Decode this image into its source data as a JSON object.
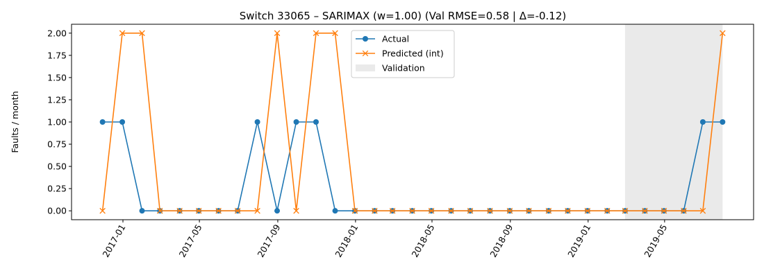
{
  "chart_data": {
    "type": "line",
    "title": "Switch 33065 – SARIMAX (w=1.00) (Val RMSE=0.58 | Δ=-0.12)",
    "xlabel": "",
    "ylabel": "Faults / month",
    "ylim": [
      -0.1,
      2.1
    ],
    "yticks": [
      "0.00",
      "0.25",
      "0.50",
      "0.75",
      "1.00",
      "1.25",
      "1.50",
      "1.75",
      "2.00"
    ],
    "xticks": [
      "2017-01",
      "2017-05",
      "2017-09",
      "2018-01",
      "2018-05",
      "2018-09",
      "2019-01",
      "2019-05"
    ],
    "x": [
      "2016-11-30",
      "2016-12-31",
      "2017-01-31",
      "2017-02-28",
      "2017-03-31",
      "2017-04-30",
      "2017-05-31",
      "2017-06-30",
      "2017-07-31",
      "2017-08-31",
      "2017-09-30",
      "2017-10-31",
      "2017-11-30",
      "2017-12-31",
      "2018-01-31",
      "2018-02-28",
      "2018-03-31",
      "2018-04-30",
      "2018-05-31",
      "2018-06-30",
      "2018-07-31",
      "2018-08-31",
      "2018-09-30",
      "2018-10-31",
      "2018-11-30",
      "2018-12-31",
      "2019-01-31",
      "2019-02-28",
      "2019-03-31",
      "2019-04-30",
      "2019-05-31",
      "2019-06-30",
      "2019-07-31"
    ],
    "series": [
      {
        "name": "Actual",
        "color": "#1f77b4",
        "marker": "circle",
        "values": [
          1,
          1,
          0,
          0,
          0,
          0,
          0,
          0,
          1,
          0,
          1,
          1,
          0,
          0,
          0,
          0,
          0,
          0,
          0,
          0,
          0,
          0,
          0,
          0,
          0,
          0,
          0,
          0,
          0,
          0,
          0,
          1,
          1
        ]
      },
      {
        "name": "Predicted (int)",
        "color": "#ff7f0e",
        "marker": "x",
        "values": [
          0,
          2,
          2,
          0,
          0,
          0,
          0,
          0,
          0,
          2,
          0,
          2,
          2,
          0,
          0,
          0,
          0,
          0,
          0,
          0,
          0,
          0,
          0,
          0,
          0,
          0,
          0,
          0,
          0,
          0,
          0,
          0,
          2
        ]
      }
    ],
    "validation": {
      "label": "Validation",
      "start": "2019-02-28",
      "end": "2019-07-31",
      "color": "#d9d9d9"
    },
    "legend_position": "top-center",
    "grid": false
  }
}
